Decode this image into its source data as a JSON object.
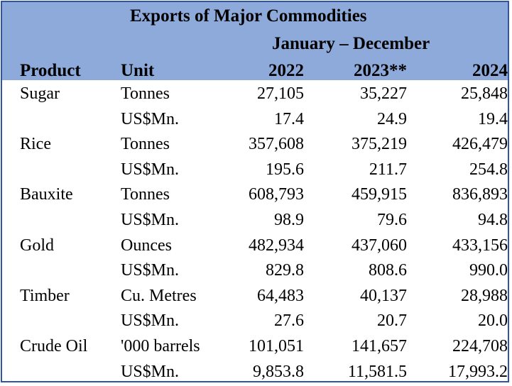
{
  "title": "Exports of Major Commodities",
  "period": "January – December",
  "headers": {
    "product": "Product",
    "unit": "Unit",
    "y1": "2022",
    "y2": "2023**",
    "y3": "2024"
  },
  "rows": [
    {
      "product": "Sugar",
      "unit": "Tonnes",
      "y1": "27,105",
      "y2": "35,227",
      "y3": "25,848"
    },
    {
      "product": "",
      "unit": "US$Mn.",
      "y1": "17.4",
      "y2": "24.9",
      "y3": "19.4"
    },
    {
      "product": "Rice",
      "unit": "Tonnes",
      "y1": "357,608",
      "y2": "375,219",
      "y3": "426,479"
    },
    {
      "product": "",
      "unit": "US$Mn.",
      "y1": "195.6",
      "y2": "211.7",
      "y3": "254.8"
    },
    {
      "product": "Bauxite",
      "unit": "Tonnes",
      "y1": "608,793",
      "y2": "459,915",
      "y3": "836,893"
    },
    {
      "product": "",
      "unit": "US$Mn.",
      "y1": "98.9",
      "y2": "79.6",
      "y3": "94.8"
    },
    {
      "product": "Gold",
      "unit": "Ounces",
      "y1": "482,934",
      "y2": "437,060",
      "y3": "433,156"
    },
    {
      "product": "",
      "unit": "US$Mn.",
      "y1": "829.8",
      "y2": "808.6",
      "y3": "990.0"
    },
    {
      "product": "Timber",
      "unit": "Cu. Metres",
      "y1": "64,483",
      "y2": "40,137",
      "y3": "28,988"
    },
    {
      "product": "",
      "unit": "US$Mn.",
      "y1": "27.6",
      "y2": "20.7",
      "y3": "20.0"
    },
    {
      "product": "Crude Oil",
      "unit": "'000 barrels",
      "y1": "101,051",
      "y2": "141,657",
      "y3": "224,708"
    },
    {
      "product": "",
      "unit": "US$Mn.",
      "y1": "9,853.8",
      "y2": "11,581.5",
      "y3": "17,993.2"
    }
  ],
  "colors": {
    "header_bg": "#8eaadb",
    "border": "#2f55a4"
  }
}
